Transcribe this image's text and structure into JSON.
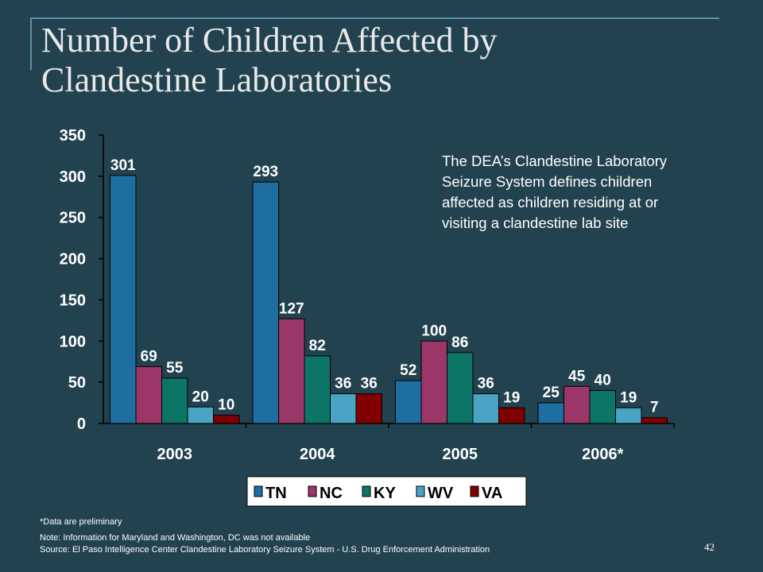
{
  "slide": {
    "title_line1": "Number of Children Affected by",
    "title_line2": "Clandestine Laboratories",
    "note": "The DEA’s Clandestine Laboratory Seizure System defines children affected as children residing at or visiting a clandestine lab site",
    "footnote_preliminary": "*Data are preliminary",
    "footnote_note": "Note: Information for Maryland and Washington, DC was not available",
    "footnote_source": "Source:  El Paso Intelligence Center Clandestine Laboratory Seizure  System - U.S. Drug Enforcement Administration",
    "page_number": "42"
  },
  "chart_data": {
    "type": "bar",
    "title": "Number of Children Affected by Clandestine Laboratories",
    "xlabel": "",
    "ylabel": "",
    "categories": [
      "2003",
      "2004",
      "2005",
      "2006*"
    ],
    "ylim": [
      0,
      350
    ],
    "yticks": [
      0,
      50,
      100,
      150,
      200,
      250,
      300,
      350
    ],
    "legend_position": "bottom",
    "grid": false,
    "series": [
      {
        "name": "TN",
        "color": "#1F6EA1",
        "values": [
          301,
          293,
          52,
          25
        ]
      },
      {
        "name": "NC",
        "color": "#9A3668",
        "values": [
          69,
          127,
          100,
          45
        ]
      },
      {
        "name": "KY",
        "color": "#0D7566",
        "values": [
          55,
          82,
          86,
          40
        ]
      },
      {
        "name": "WV",
        "color": "#4BA3C3",
        "values": [
          20,
          36,
          36,
          19
        ]
      },
      {
        "name": "VA",
        "color": "#800000",
        "values": [
          10,
          36,
          19,
          7
        ]
      }
    ]
  }
}
